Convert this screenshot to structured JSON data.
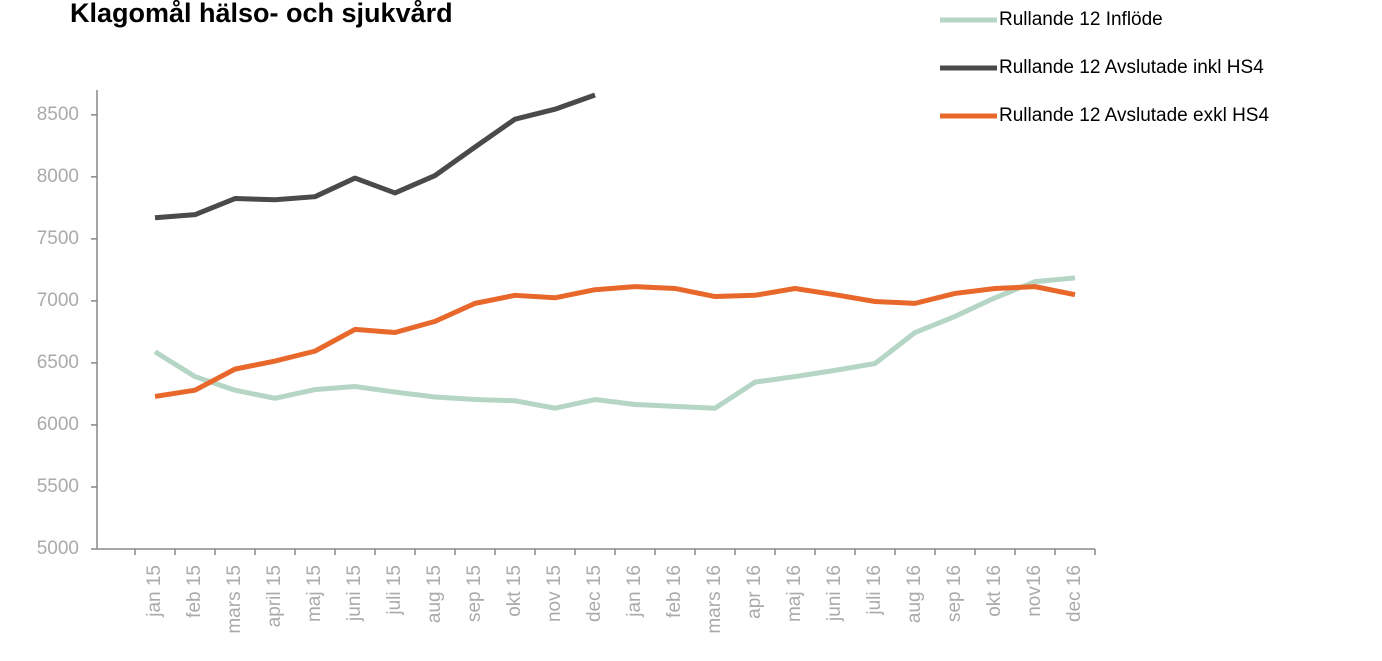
{
  "chart_data": {
    "type": "line",
    "title": "Klagomål hälso- och sjukvård",
    "categories": [
      "jan 15",
      "feb 15",
      "mars 15",
      "april 15",
      "maj 15",
      "juni 15",
      "juli 15",
      "aug 15",
      "sep 15",
      "okt 15",
      "nov 15",
      "dec 15",
      "jan 16",
      "feb 16",
      "mars 16",
      "apr 16",
      "maj 16",
      "juni 16",
      "juli 16",
      "aug 16",
      "sep 16",
      "okt 16",
      "nov16",
      "dec 16"
    ],
    "series": [
      {
        "name": "Rullande 12 Inflöde",
        "color": "#b5d5c5",
        "values": [
          6590,
          6390,
          6280,
          6215,
          6285,
          6310,
          6265,
          6225,
          6205,
          6195,
          6135,
          6205,
          6165,
          6150,
          6135,
          6345,
          6390,
          6440,
          6495,
          6745,
          6875,
          7025,
          7155,
          7185
        ]
      },
      {
        "name": "Rullande 12 Avslutade inkl HS4",
        "color": "#4a4a4a",
        "values": [
          7670,
          7695,
          7825,
          7815,
          7840,
          7990,
          7870,
          8010,
          8240,
          8465,
          8545,
          8660,
          null,
          null,
          null,
          null,
          null,
          null,
          null,
          null,
          null,
          null,
          null,
          null
        ]
      },
      {
        "name": "Rullande 12 Avslutade exkl HS4",
        "color": "#e8672a",
        "values": [
          6230,
          6280,
          6450,
          6515,
          6595,
          6770,
          6745,
          6835,
          6980,
          7045,
          7025,
          7090,
          7115,
          7100,
          7035,
          7045,
          7100,
          7050,
          6995,
          6980,
          7060,
          7100,
          7115,
          7050
        ]
      }
    ],
    "ylim": [
      5000,
      8700
    ],
    "yticks": [
      5000,
      5500,
      6000,
      6500,
      7000,
      7500,
      8000,
      8500
    ],
    "legend": "top-right"
  }
}
